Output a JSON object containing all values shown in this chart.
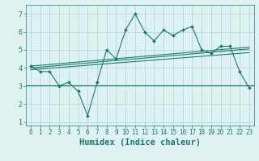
{
  "x": [
    0,
    1,
    2,
    3,
    4,
    5,
    6,
    7,
    8,
    9,
    10,
    11,
    12,
    13,
    14,
    15,
    16,
    17,
    18,
    19,
    20,
    21,
    22,
    23
  ],
  "y_main": [
    4.1,
    3.8,
    3.8,
    3.0,
    3.2,
    2.7,
    1.35,
    3.2,
    5.0,
    4.5,
    6.1,
    7.0,
    6.0,
    5.5,
    6.1,
    5.8,
    6.1,
    6.3,
    5.0,
    4.8,
    5.2,
    5.2,
    3.8,
    2.9
  ],
  "y_flat": 3.05,
  "trend1_x": [
    0,
    23
  ],
  "trend1_y": [
    4.1,
    5.15
  ],
  "trend2_x": [
    0,
    23
  ],
  "trend2_y": [
    4.0,
    5.05
  ],
  "trend3_x": [
    0,
    23
  ],
  "trend3_y": [
    3.9,
    4.85
  ],
  "xlim": [
    -0.5,
    23.5
  ],
  "ylim": [
    0.8,
    7.5
  ],
  "xticks": [
    0,
    1,
    2,
    3,
    4,
    5,
    6,
    7,
    8,
    9,
    10,
    11,
    12,
    13,
    14,
    15,
    16,
    17,
    18,
    19,
    20,
    21,
    22,
    23
  ],
  "yticks": [
    1,
    2,
    3,
    4,
    5,
    6,
    7
  ],
  "xlabel": "Humidex (Indice chaleur)",
  "line_color": "#1a7a6a",
  "bg_color": "#dff2f2",
  "grid_color": "#aed4d4",
  "tick_fontsize": 5.5,
  "label_fontsize": 7.5
}
